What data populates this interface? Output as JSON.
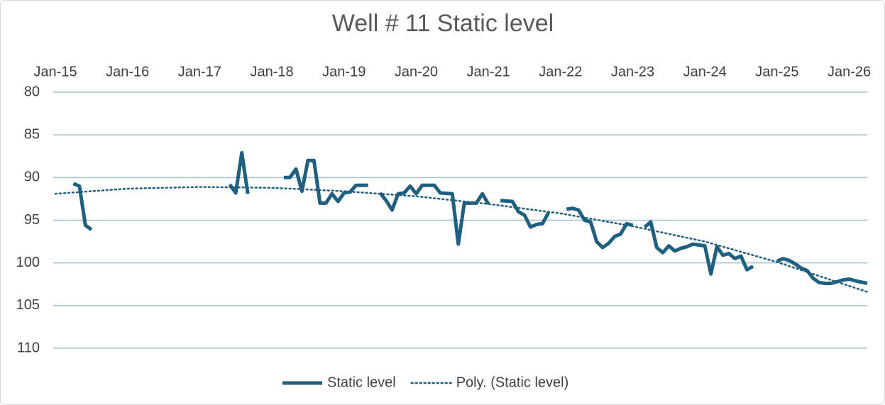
{
  "chart_data": {
    "type": "line",
    "title": "Well # 11 Static level",
    "xlim": [
      "2015-01",
      "2026-04"
    ],
    "xticks": [
      {
        "value": "2015-01",
        "label": "Jan-15"
      },
      {
        "value": "2016-01",
        "label": "Jan-16"
      },
      {
        "value": "2017-01",
        "label": "Jan-17"
      },
      {
        "value": "2018-01",
        "label": "Jan-18"
      },
      {
        "value": "2019-01",
        "label": "Jan-19"
      },
      {
        "value": "2020-01",
        "label": "Jan-20"
      },
      {
        "value": "2021-01",
        "label": "Jan-21"
      },
      {
        "value": "2022-01",
        "label": "Jan-22"
      },
      {
        "value": "2023-01",
        "label": "Jan-23"
      },
      {
        "value": "2024-01",
        "label": "Jan-24"
      },
      {
        "value": "2025-01",
        "label": "Jan-25"
      },
      {
        "value": "2026-01",
        "label": "Jan-26"
      }
    ],
    "x_axis_position": "top",
    "ylim": [
      80,
      110
    ],
    "yticks": [
      80,
      85,
      90,
      95,
      100,
      105,
      110
    ],
    "y_reversed": true,
    "grid": true,
    "legend": "bottom",
    "series": [
      {
        "name": "Static level",
        "color": "#1f5f7f",
        "dash": "solid",
        "x": [
          "2015-04",
          "2015-05",
          "2015-06",
          "2015-07",
          "2015-08",
          "2017-06",
          "2017-07",
          "2017-08",
          "2017-09",
          "2017-10",
          "2018-03",
          "2018-04",
          "2018-05",
          "2018-06",
          "2018-07",
          "2018-08",
          "2018-09",
          "2018-10",
          "2018-11",
          "2018-12",
          "2019-01",
          "2019-02",
          "2019-03",
          "2019-05",
          "2019-06",
          "2019-07",
          "2019-08",
          "2019-09",
          "2019-10",
          "2019-11",
          "2019-12",
          "2020-01",
          "2020-02",
          "2020-04",
          "2020-05",
          "2020-07",
          "2020-08",
          "2020-09",
          "2020-11",
          "2020-12",
          "2021-01",
          "2021-02",
          "2021-03",
          "2021-05",
          "2021-06",
          "2021-07",
          "2021-08",
          "2021-09",
          "2021-10",
          "2021-11",
          "2021-12",
          "2022-02",
          "2022-03",
          "2022-04",
          "2022-05",
          "2022-06",
          "2022-07",
          "2022-08",
          "2022-09",
          "2022-10",
          "2022-11",
          "2022-12",
          "2023-01",
          "2023-02",
          "2023-03",
          "2023-04",
          "2023-05",
          "2023-06",
          "2023-07",
          "2023-08",
          "2023-09",
          "2023-10",
          "2023-11",
          "2024-01",
          "2024-02",
          "2024-03",
          "2024-04",
          "2024-05",
          "2024-06",
          "2024-07",
          "2024-08",
          "2024-09",
          "2024-10",
          "2025-01",
          "2025-02",
          "2025-03",
          "2025-04",
          "2025-05",
          "2025-06",
          "2025-07",
          "2025-08",
          "2025-09",
          "2025-10",
          "2025-11",
          "2025-12",
          "2026-01",
          "2026-02",
          "2026-04"
        ],
        "values": [
          90.7,
          91.0,
          95.6,
          96.1,
          null,
          90.8,
          91.8,
          87.1,
          91.9,
          null,
          90.0,
          90.0,
          89.0,
          91.6,
          88.0,
          88.0,
          93.0,
          93.0,
          91.9,
          92.8,
          91.8,
          91.7,
          90.9,
          90.9,
          null,
          91.8,
          92.7,
          93.8,
          91.9,
          91.8,
          91.0,
          91.9,
          90.9,
          90.9,
          91.8,
          91.9,
          97.8,
          93.0,
          93.0,
          91.9,
          93.1,
          null,
          92.7,
          92.8,
          94.0,
          94.4,
          95.8,
          95.5,
          95.4,
          94.1,
          null,
          93.7,
          93.6,
          93.8,
          95.0,
          95.2,
          97.5,
          98.2,
          97.7,
          96.9,
          96.6,
          95.4,
          95.6,
          null,
          95.8,
          95.2,
          98.2,
          98.8,
          98.0,
          98.6,
          98.3,
          98.1,
          97.8,
          98.0,
          101.3,
          98.1,
          99.1,
          98.9,
          99.5,
          99.2,
          100.8,
          100.4,
          null,
          99.8,
          99.5,
          99.7,
          100.1,
          100.6,
          100.9,
          101.8,
          102.3,
          102.4,
          102.4,
          102.2,
          102.0,
          101.9,
          102.1,
          102.4
        ]
      },
      {
        "name": "Poly. (Static level)",
        "color": "#1f5f7f",
        "dash": "dotted",
        "x": [
          "2015-01",
          "2016-01",
          "2017-01",
          "2018-01",
          "2019-01",
          "2020-01",
          "2021-01",
          "2022-01",
          "2023-01",
          "2024-01",
          "2025-01",
          "2026-01",
          "2026-04"
        ],
        "values": [
          91.9,
          91.3,
          91.1,
          91.2,
          91.6,
          92.2,
          93.1,
          94.2,
          95.7,
          97.5,
          99.9,
          102.7,
          103.4
        ]
      }
    ]
  }
}
